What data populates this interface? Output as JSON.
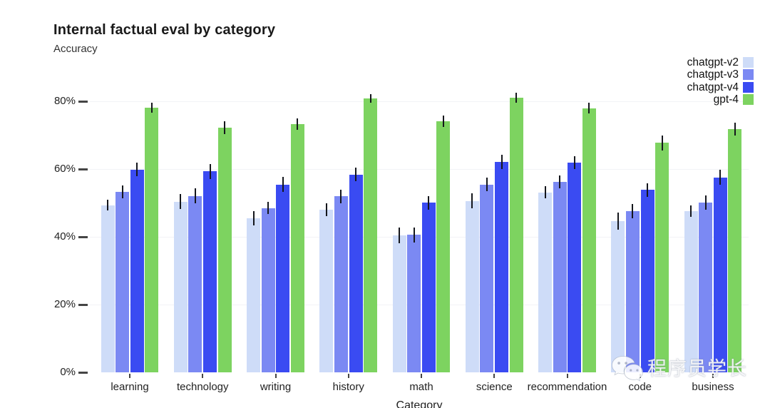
{
  "header": {
    "title": "Internal factual eval by category",
    "subtitle": "Accuracy"
  },
  "watermark": {
    "text": "程序员学长",
    "icon": "wechat-icon"
  },
  "chart_data": {
    "type": "bar",
    "title": "Internal factual eval by category",
    "ylabel": "Accuracy",
    "xlabel": "Category",
    "categories": [
      "learning",
      "technology",
      "writing",
      "history",
      "math",
      "science",
      "recommendation",
      "code",
      "business"
    ],
    "series": [
      {
        "name": "chatgpt-v2",
        "color": "#cedcf8",
        "values": [
          49.3,
          50.4,
          45.4,
          48.0,
          40.4,
          50.6,
          53.1,
          44.7,
          47.6
        ],
        "errors": [
          1.6,
          2.2,
          2.1,
          1.9,
          2.3,
          2.2,
          1.8,
          2.5,
          1.7
        ]
      },
      {
        "name": "chatgpt-v3",
        "color": "#7b89f3",
        "values": [
          53.3,
          52.1,
          48.5,
          51.9,
          40.6,
          55.4,
          56.2,
          47.5,
          50.1
        ],
        "errors": [
          1.9,
          2.2,
          1.8,
          2.1,
          2.2,
          2.0,
          1.9,
          2.1,
          2.1
        ]
      },
      {
        "name": "chatgpt-v4",
        "color": "#3a4bf2",
        "values": [
          59.8,
          59.3,
          55.4,
          58.4,
          50.1,
          62.2,
          61.9,
          53.8,
          57.5
        ],
        "errors": [
          2.0,
          2.2,
          2.2,
          2.0,
          2.0,
          2.1,
          1.8,
          2.0,
          2.2
        ]
      },
      {
        "name": "gpt-4",
        "color": "#7dd360",
        "values": [
          78.1,
          72.2,
          73.2,
          80.8,
          74.1,
          81.1,
          78.0,
          67.7,
          71.7
        ],
        "errors": [
          1.5,
          1.9,
          1.7,
          1.3,
          1.7,
          1.5,
          1.6,
          2.2,
          1.9
        ]
      }
    ],
    "ylim": [
      0,
      100
    ],
    "yticks": [
      0,
      20,
      40,
      60,
      80
    ],
    "ytick_suffix": "%",
    "grid": true,
    "error_bars": true,
    "legend_position": "top-right",
    "background": "#ffffff",
    "gridline_color": "#f2f3f6"
  }
}
